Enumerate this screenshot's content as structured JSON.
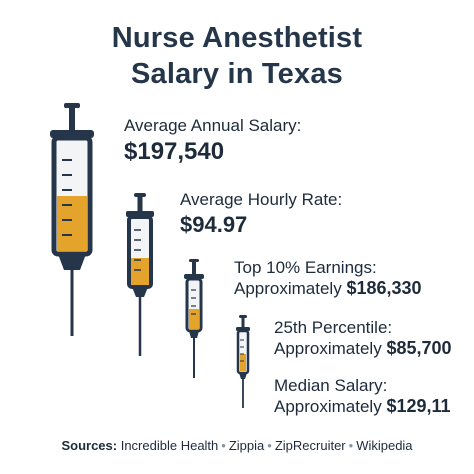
{
  "title_line1": "Nurse Anesthetist",
  "title_line2": "Salary in Texas",
  "colors": {
    "navy": "#25354a",
    "fill": "#e4a42c",
    "barrel": "#f2f4f6"
  },
  "stats": [
    {
      "label": "Average Annual Salary:",
      "value": "$197,540"
    },
    {
      "label": "Average Hourly Rate:",
      "value": "$94.97"
    },
    {
      "label": "Top 10% Earnings:",
      "prefix": "Approximately",
      "value": "$186,330"
    },
    {
      "label": "25th Percentile:",
      "prefix": "Approximately",
      "value": "$85,700"
    },
    {
      "label": "Median Salary:",
      "prefix": "Approximately",
      "value": "$129,11"
    }
  ],
  "sources": {
    "label": "Sources:",
    "items": [
      "Incredible Health",
      "Zippia",
      "ZipRecruiter",
      "Wikipedia"
    ],
    "separator": "•"
  }
}
